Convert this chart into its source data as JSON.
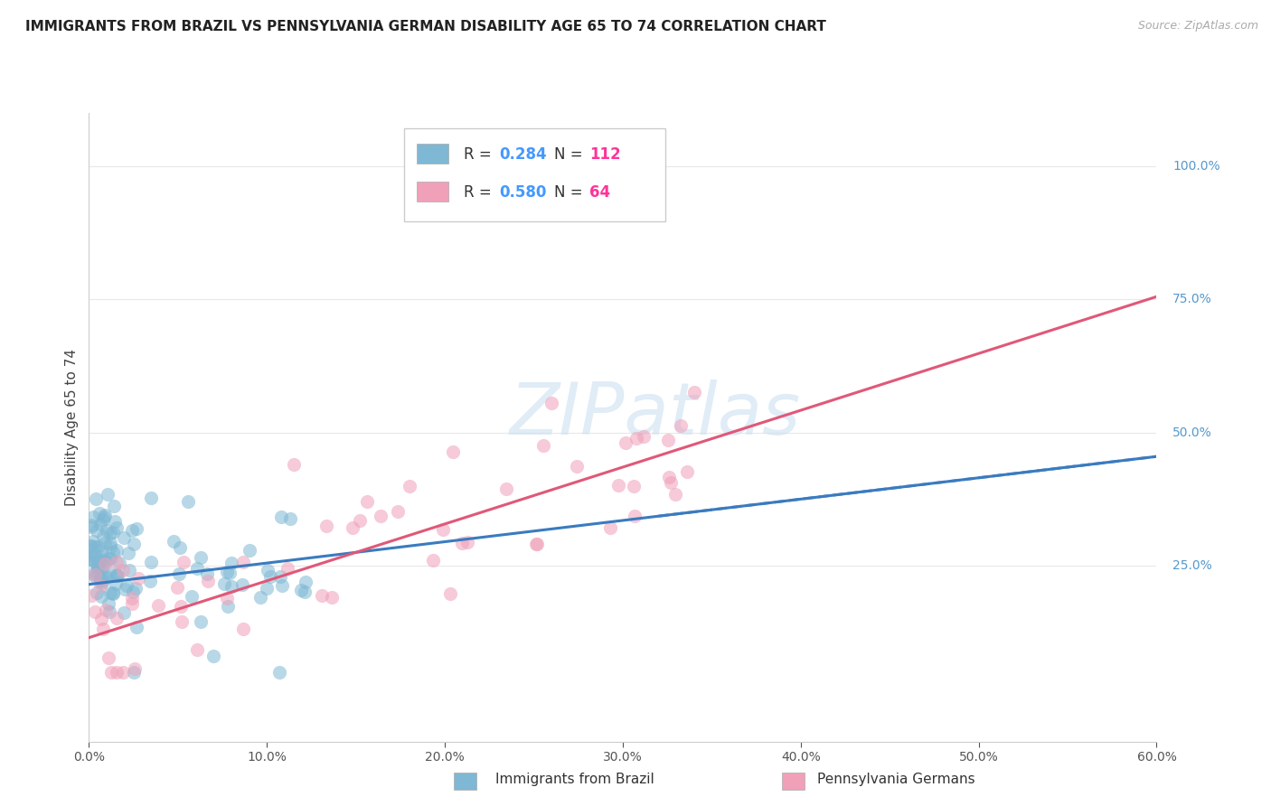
{
  "title": "IMMIGRANTS FROM BRAZIL VS PENNSYLVANIA GERMAN DISABILITY AGE 65 TO 74 CORRELATION CHART",
  "source": "Source: ZipAtlas.com",
  "ylabel_label": "Disability Age 65 to 74",
  "watermark": "ZIPatlas",
  "series1_name": "Immigrants from Brazil",
  "series1_color": "#7eb8d4",
  "series1_line_color": "#3a7bbf",
  "series1_R": 0.284,
  "series1_N": 112,
  "series2_name": "Pennsylvania Germans",
  "series2_color": "#f0a0b8",
  "series2_line_color": "#e05878",
  "series2_R": 0.58,
  "series2_N": 64,
  "xmin": 0.0,
  "xmax": 0.6,
  "ymin": -0.08,
  "ymax": 1.1,
  "ytick_positions": [
    0.25,
    0.5,
    0.75,
    1.0
  ],
  "ytick_labels": [
    "25.0%",
    "50.0%",
    "75.0%",
    "100.0%"
  ],
  "background_color": "#ffffff",
  "grid_color": "#e8e8e8",
  "legend_R_color": "#4499ff",
  "legend_N_color": "#ff3399",
  "title_fontsize": 11,
  "source_fontsize": 9,
  "axis_label_color": "#5599cc",
  "trend1_y0": 0.215,
  "trend1_y1": 0.455,
  "trend2_y0": 0.115,
  "trend2_y1": 0.755
}
